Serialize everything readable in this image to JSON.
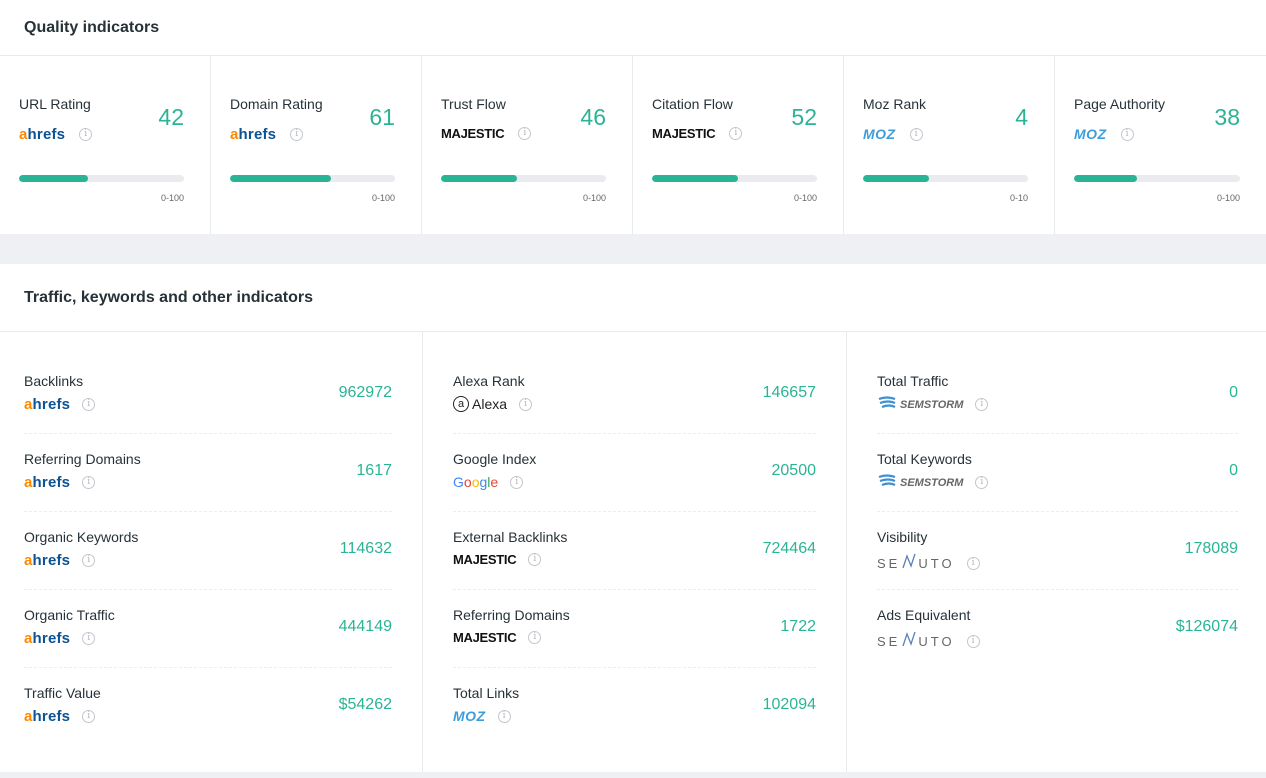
{
  "quality": {
    "title": "Quality indicators",
    "cards": [
      {
        "label": "URL Rating",
        "source": "ahrefs",
        "value": "42",
        "range": "0-100",
        "progress": 0.42
      },
      {
        "label": "Domain Rating",
        "source": "ahrefs",
        "value": "61",
        "range": "0-100",
        "progress": 0.61
      },
      {
        "label": "Trust Flow",
        "source": "MAJESTIC",
        "value": "46",
        "range": "0-100",
        "progress": 0.46
      },
      {
        "label": "Citation Flow",
        "source": "MAJESTIC",
        "value": "52",
        "range": "0-100",
        "progress": 0.52
      },
      {
        "label": "Moz Rank",
        "source": "MOZ",
        "value": "4",
        "range": "0-10",
        "progress": 0.4
      },
      {
        "label": "Page Authority",
        "source": "MOZ",
        "value": "38",
        "range": "0-100",
        "progress": 0.38
      }
    ]
  },
  "traffic": {
    "title": "Traffic, keywords and other indicators",
    "columns": [
      [
        {
          "label": "Backlinks",
          "source": "ahrefs",
          "value": "962972"
        },
        {
          "label": "Referring Domains",
          "source": "ahrefs",
          "value": "1617"
        },
        {
          "label": "Organic Keywords",
          "source": "ahrefs",
          "value": "114632"
        },
        {
          "label": "Organic Traffic",
          "source": "ahrefs",
          "value": "444149"
        },
        {
          "label": "Traffic Value",
          "source": "ahrefs",
          "value": "$54262"
        }
      ],
      [
        {
          "label": "Alexa Rank",
          "source": "Alexa",
          "value": "146657"
        },
        {
          "label": "Google Index",
          "source": "Google",
          "value": "20500"
        },
        {
          "label": "External Backlinks",
          "source": "MAJESTIC",
          "value": "724464"
        },
        {
          "label": "Referring Domains",
          "source": "MAJESTIC",
          "value": "1722"
        },
        {
          "label": "Total Links",
          "source": "MOZ",
          "value": "102094"
        }
      ],
      [
        {
          "label": "Total Traffic",
          "source": "SEMSTORM",
          "value": "0"
        },
        {
          "label": "Total Keywords",
          "source": "SEMSTORM",
          "value": "0"
        },
        {
          "label": "Visibility",
          "source": "SENUTO",
          "value": "178089"
        },
        {
          "label": "Ads Equivalent",
          "source": "SENUTO",
          "value": "$126074"
        }
      ]
    ]
  },
  "logos": {
    "ahrefs_a": "a",
    "ahrefs_rest": "hrefs",
    "majestic": "MAJESTIC",
    "moz": "MOZ",
    "alexa_at": "a",
    "alexa": "Alexa",
    "semstorm": "SEMSTORM",
    "senuto_se": "SE",
    "senuto_uto": "UTO"
  },
  "colors": {
    "accent": "#2ab495",
    "track": "#e9ebef"
  },
  "icons": {
    "info": "info-icon"
  }
}
